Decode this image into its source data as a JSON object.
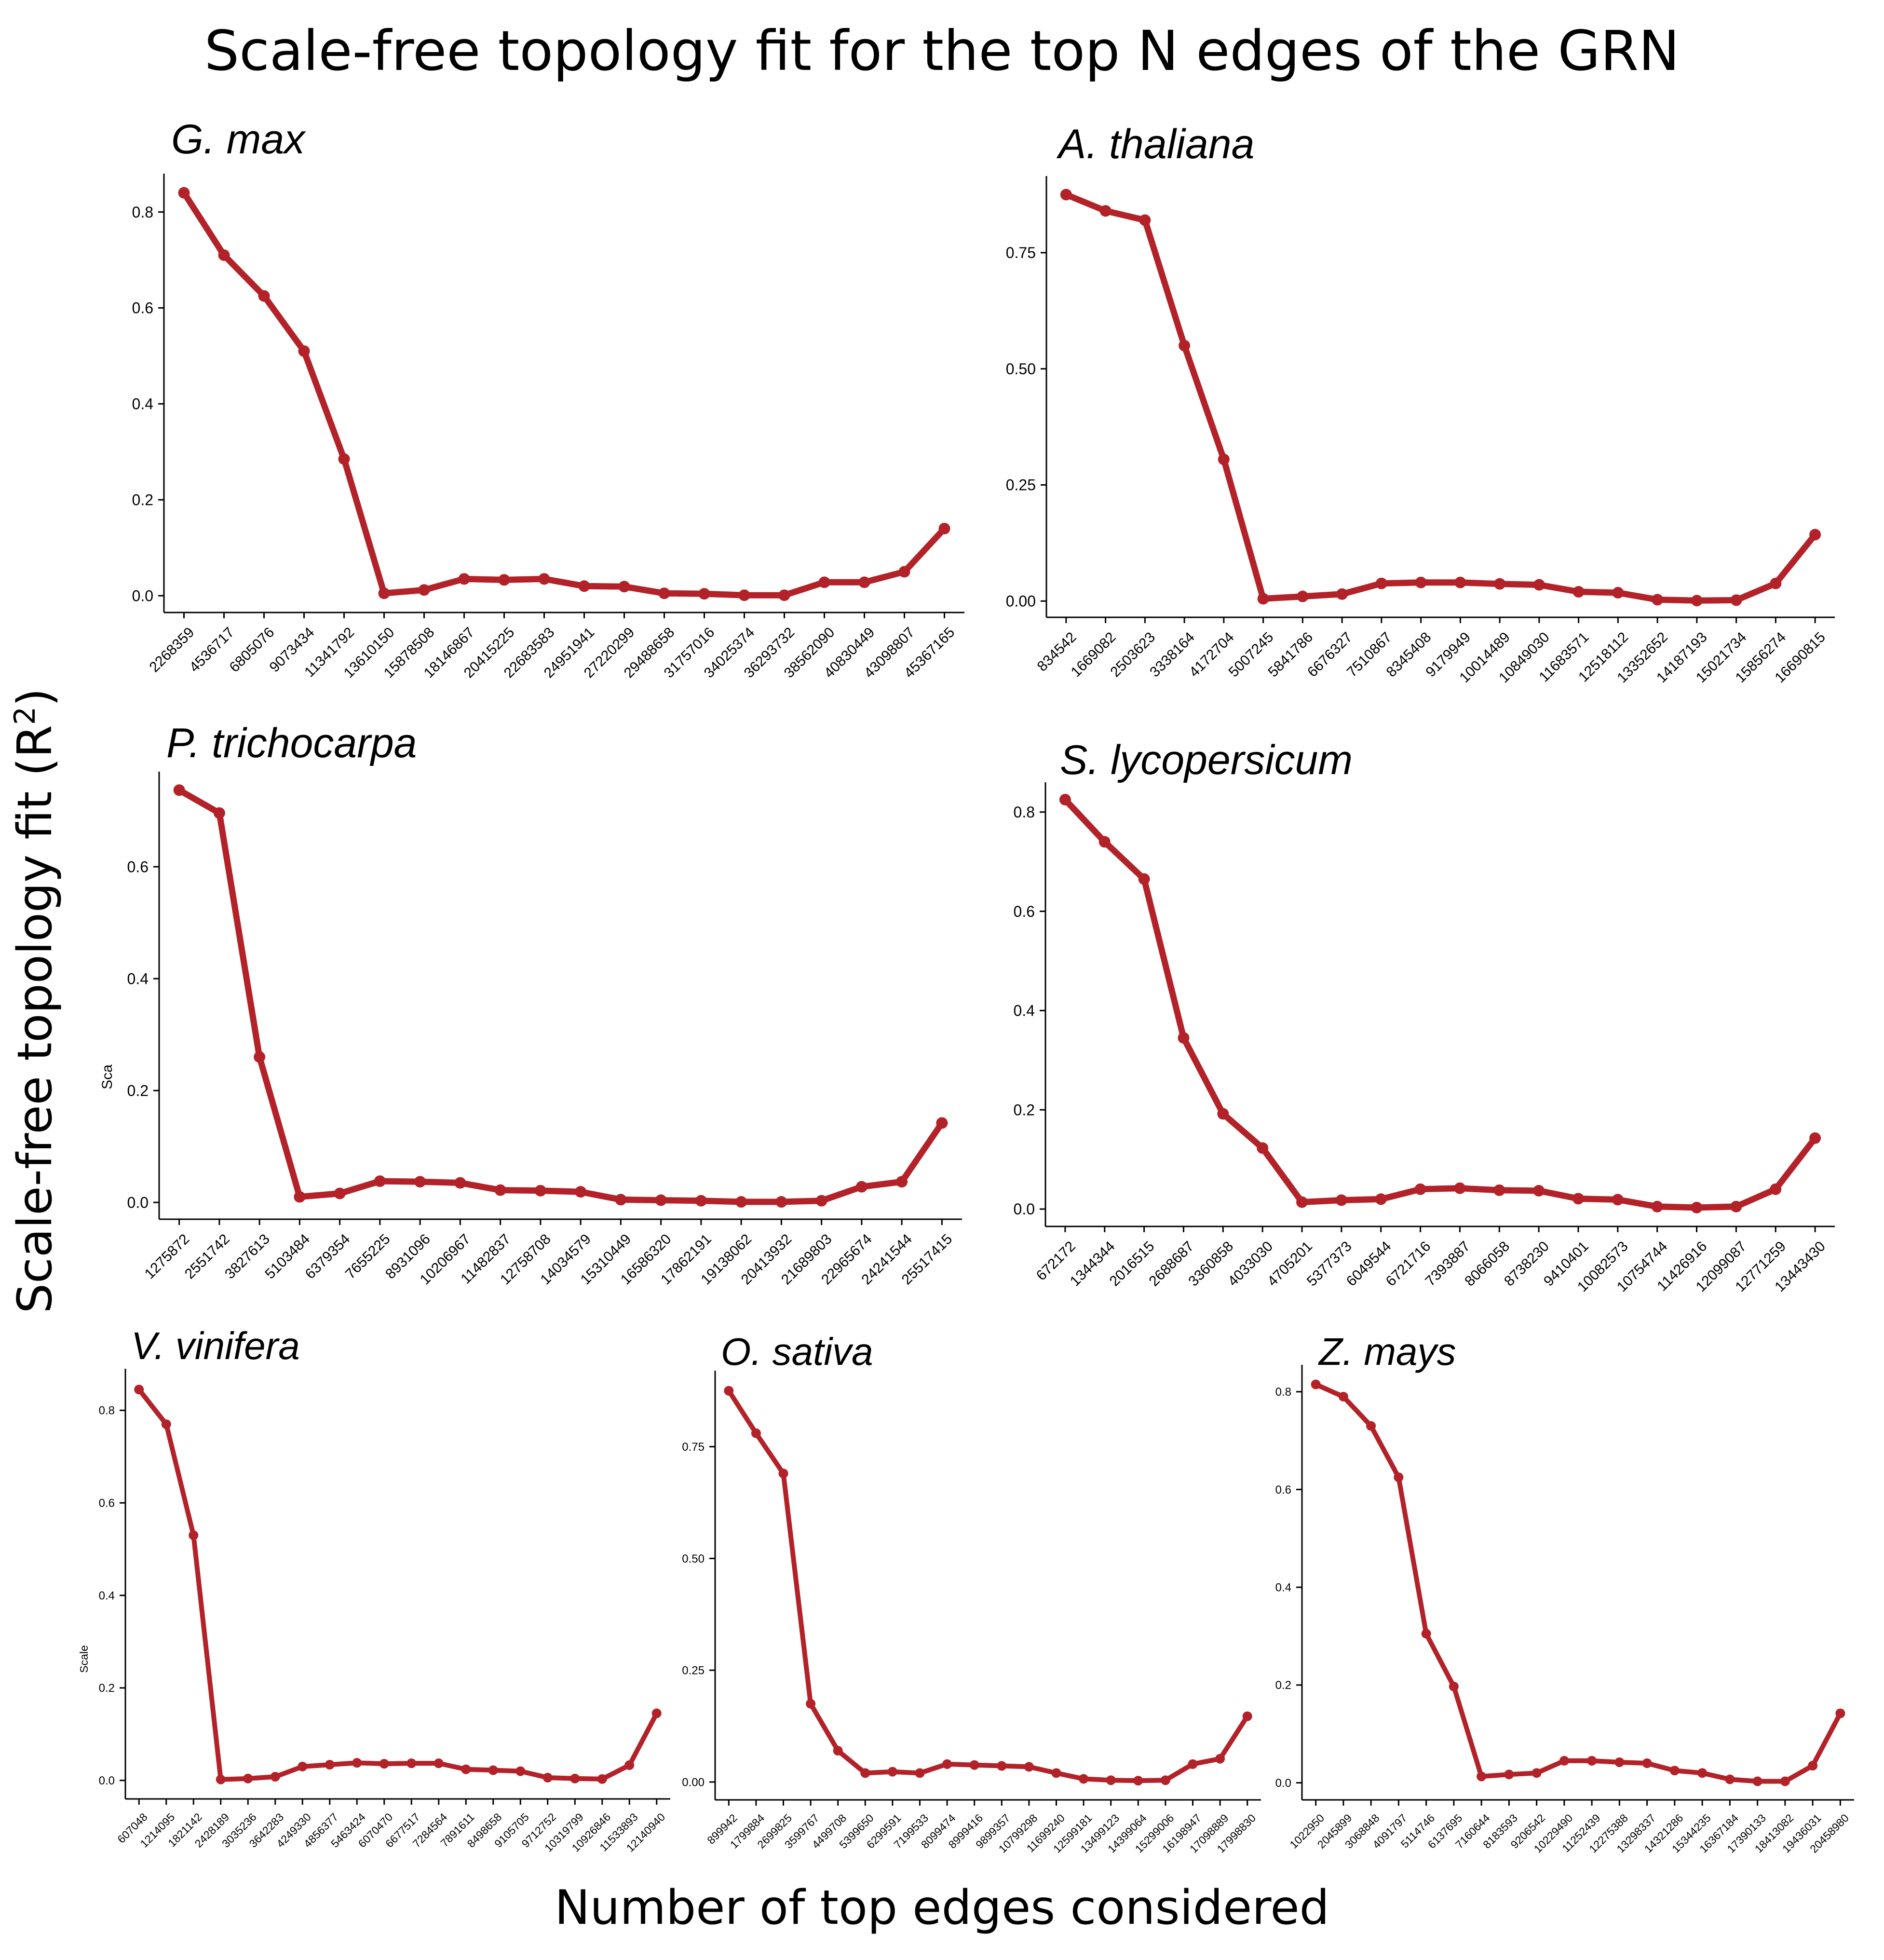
{
  "title": "Scale-free topology fit for the top N edges of the GRN",
  "xlabel": "Number of top edges considered",
  "ylabel_main": "Scale-free topology fit (R",
  "ylabel_sup": "2",
  "ylabel_close": ")",
  "colors": {
    "line": "#b22228",
    "axis": "#000000"
  },
  "chart_data": [
    {
      "type": "line",
      "title": "G. max",
      "categories": [
        "2268359",
        "4536717",
        "6805076",
        "9073434",
        "11341792",
        "13610150",
        "15878508",
        "18146867",
        "20415225",
        "22683583",
        "24951941",
        "27220299",
        "29488658",
        "31757016",
        "34025374",
        "36293732",
        "38562090",
        "40830449",
        "43098807",
        "45367165"
      ],
      "values": [
        0.84,
        0.71,
        0.625,
        0.51,
        0.285,
        0.005,
        0.012,
        0.035,
        0.033,
        0.035,
        0.02,
        0.019,
        0.005,
        0.004,
        0.001,
        0.001,
        0.028,
        0.028,
        0.05,
        0.14
      ],
      "yticks": [
        0.0,
        0.2,
        0.4,
        0.6,
        0.8
      ],
      "yticklabels": [
        "0.0",
        "0.2",
        "0.4",
        "0.6",
        "0.8"
      ],
      "ylim": [
        -0.035,
        0.88
      ]
    },
    {
      "type": "line",
      "title": "A. thaliana",
      "categories": [
        "834542",
        "1669082",
        "2503623",
        "3338164",
        "4172704",
        "5007245",
        "5841786",
        "6676327",
        "7510867",
        "8345408",
        "9179949",
        "10014489",
        "10849030",
        "11683571",
        "12518112",
        "13352652",
        "14187193",
        "15021734",
        "15856274",
        "16690815"
      ],
      "values": [
        0.875,
        0.84,
        0.82,
        0.55,
        0.305,
        0.005,
        0.01,
        0.015,
        0.038,
        0.04,
        0.04,
        0.037,
        0.035,
        0.02,
        0.018,
        0.003,
        0.001,
        0.002,
        0.038,
        0.143
      ],
      "yticks": [
        0.0,
        0.25,
        0.5,
        0.75
      ],
      "yticklabels": [
        "0.00",
        "0.25",
        "0.50",
        "0.75"
      ],
      "ylim": [
        -0.035,
        0.915
      ]
    },
    {
      "type": "line",
      "title": "P. trichocarpa",
      "categories": [
        "1275872",
        "2551742",
        "3827613",
        "5103484",
        "6379354",
        "7655225",
        "8931096",
        "10206967",
        "11482837",
        "12758708",
        "14034579",
        "15310449",
        "16586320",
        "17862191",
        "19138062",
        "20413932",
        "21689803",
        "22965674",
        "24241544",
        "25517415"
      ],
      "values": [
        0.737,
        0.696,
        0.26,
        0.01,
        0.016,
        0.038,
        0.037,
        0.035,
        0.022,
        0.021,
        0.019,
        0.005,
        0.004,
        0.003,
        0.001,
        0.001,
        0.003,
        0.028,
        0.037,
        0.142
      ],
      "yticks": [
        0.0,
        0.2,
        0.4,
        0.6
      ],
      "yticklabels": [
        "0.0",
        "0.2",
        "0.4",
        "0.6"
      ],
      "ylim": [
        -0.03,
        0.77
      ]
    },
    {
      "type": "line",
      "title": "S. lycopersicum",
      "categories": [
        "672172",
        "1344344",
        "2016515",
        "2688687",
        "3360858",
        "4033030",
        "4705201",
        "5377373",
        "6049544",
        "6721716",
        "7393887",
        "8066058",
        "8738230",
        "9410401",
        "10082573",
        "10754744",
        "11426916",
        "12099087",
        "12771259",
        "13443430"
      ],
      "values": [
        0.825,
        0.74,
        0.665,
        0.345,
        0.192,
        0.123,
        0.014,
        0.018,
        0.02,
        0.04,
        0.042,
        0.038,
        0.037,
        0.021,
        0.019,
        0.005,
        0.003,
        0.005,
        0.04,
        0.143
      ],
      "yticks": [
        0.0,
        0.2,
        0.4,
        0.6,
        0.8
      ],
      "yticklabels": [
        "0.0",
        "0.2",
        "0.4",
        "0.6",
        "0.8"
      ],
      "ylim": [
        -0.035,
        0.86
      ]
    },
    {
      "type": "line",
      "title": "V. vinifera",
      "categories": [
        "607048",
        "1214095",
        "1821142",
        "2428189",
        "3035236",
        "3642283",
        "4249330",
        "4856377",
        "5463424",
        "6070470",
        "6677517",
        "7284564",
        "7891611",
        "8498658",
        "9105705",
        "9712752",
        "10319799",
        "10926846",
        "11533893",
        "12140940"
      ],
      "values": [
        0.845,
        0.77,
        0.53,
        0.002,
        0.004,
        0.008,
        0.03,
        0.034,
        0.038,
        0.036,
        0.037,
        0.037,
        0.024,
        0.022,
        0.02,
        0.006,
        0.004,
        0.003,
        0.033,
        0.145
      ],
      "yticks": [
        0.0,
        0.2,
        0.4,
        0.6,
        0.8
      ],
      "yticklabels": [
        "0.0",
        "0.2",
        "0.4",
        "0.6",
        "0.8"
      ],
      "ylim": [
        -0.04,
        0.89
      ]
    },
    {
      "type": "line",
      "title": "O. sativa",
      "categories": [
        "899942",
        "1799884",
        "2699825",
        "3599767",
        "4499708",
        "5399650",
        "6299591",
        "7199533",
        "8099474",
        "8999416",
        "9899357",
        "10799298",
        "11699240",
        "12599181",
        "13499123",
        "14399064",
        "15299006",
        "16198947",
        "17098889",
        "17998830"
      ],
      "values": [
        0.875,
        0.78,
        0.69,
        0.175,
        0.07,
        0.02,
        0.023,
        0.02,
        0.04,
        0.038,
        0.036,
        0.034,
        0.02,
        0.007,
        0.004,
        0.003,
        0.004,
        0.04,
        0.052,
        0.147
      ],
      "yticks": [
        0.0,
        0.25,
        0.5,
        0.75
      ],
      "yticklabels": [
        "0.00",
        "0.25",
        "0.50",
        "0.75"
      ],
      "ylim": [
        -0.04,
        0.92
      ]
    },
    {
      "type": "line",
      "title": "Z. mays",
      "categories": [
        "1022950",
        "2045899",
        "3068848",
        "4091797",
        "5114746",
        "6137695",
        "7160644",
        "8183593",
        "9206542",
        "10229490",
        "11252439",
        "12275388",
        "13298337",
        "14321286",
        "15344235",
        "16367184",
        "17390133",
        "18413082",
        "19436031",
        "20458980"
      ],
      "values": [
        0.815,
        0.79,
        0.73,
        0.625,
        0.305,
        0.197,
        0.013,
        0.017,
        0.02,
        0.045,
        0.045,
        0.042,
        0.04,
        0.025,
        0.02,
        0.007,
        0.003,
        0.003,
        0.035,
        0.142
      ],
      "yticks": [
        0.0,
        0.2,
        0.4,
        0.6,
        0.8
      ],
      "yticklabels": [
        "0.0",
        "0.2",
        "0.4",
        "0.6",
        "0.8"
      ],
      "ylim": [
        -0.035,
        0.855
      ]
    }
  ],
  "stray_labels": [
    "Sca",
    "Scale"
  ]
}
